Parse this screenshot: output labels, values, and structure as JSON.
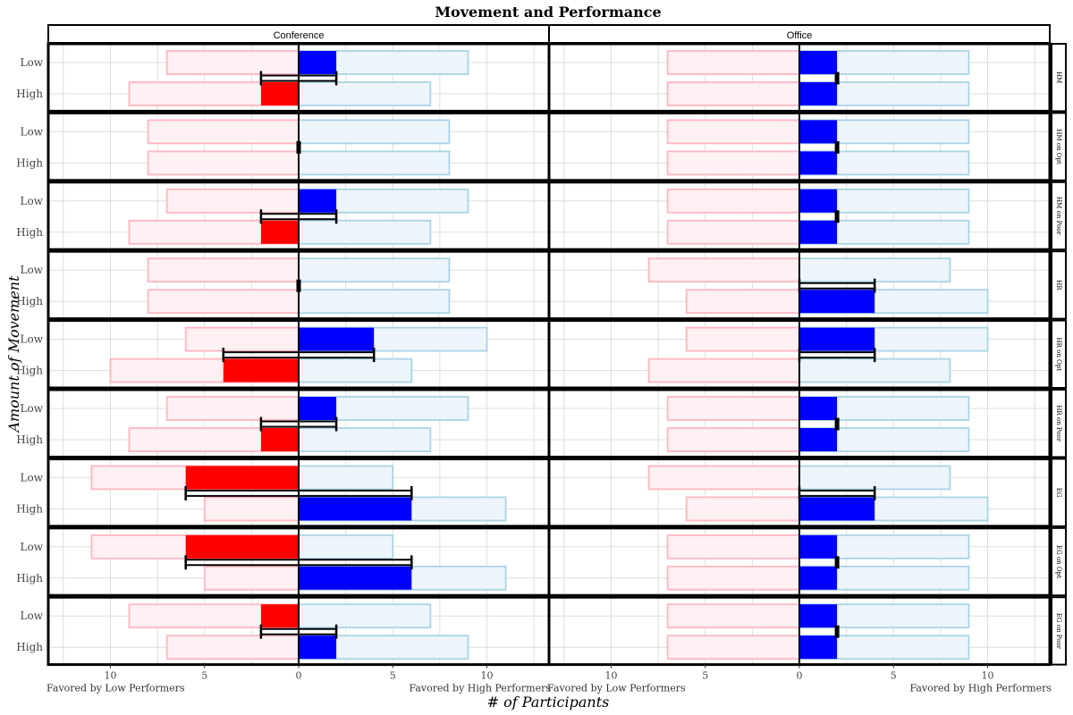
{
  "chart_data": {
    "type": "bar",
    "title": "Movement and Performance",
    "xlabel": "# of Participants",
    "ylabel": "Amount of Movement",
    "xlim": [
      -13.3,
      13.3
    ],
    "x_ticks": [
      -10,
      -5,
      0,
      5,
      10
    ],
    "x_tick_labels": [
      "10",
      "5",
      "0",
      "5",
      "10"
    ],
    "x_end_labels": {
      "left": "Favored by Low Performers",
      "right": "Favored by High Performers"
    },
    "columns": [
      "Conference",
      "Office"
    ],
    "categories": [
      "Low",
      "High"
    ],
    "rows": [
      "HM",
      "HM on Opt",
      "HM on Poor",
      "HR",
      "HR on Opt",
      "HR on Poor",
      "EG",
      "EG on Opt",
      "EG on Poor"
    ],
    "colors": {
      "low_fill": "#ff0000",
      "high_fill": "#0000ff",
      "low_bg_fill": "#fff0f3",
      "low_bg_stroke": "#ffb6c1",
      "high_bg_fill": "#eef5fa",
      "high_bg_stroke": "#a8d4e6",
      "grid": "#dddddd",
      "frame": "#000000"
    },
    "panels": [
      {
        "row": "HM",
        "column": "Conference",
        "low": {
          "left": 7,
          "right": 9,
          "net": 2
        },
        "high": {
          "left": 9,
          "right": 7,
          "net": -2
        },
        "error_bar": [
          -2,
          2
        ]
      },
      {
        "row": "HM",
        "column": "Office",
        "low": {
          "left": 7,
          "right": 9,
          "net": 2
        },
        "high": {
          "left": 7,
          "right": 9,
          "net": 2
        },
        "error_bar": [
          2,
          2
        ]
      },
      {
        "row": "HM on Opt",
        "column": "Conference",
        "low": {
          "left": 8,
          "right": 8,
          "net": 0
        },
        "high": {
          "left": 8,
          "right": 8,
          "net": 0
        },
        "error_bar": [
          0,
          0
        ]
      },
      {
        "row": "HM on Opt",
        "column": "Office",
        "low": {
          "left": 7,
          "right": 9,
          "net": 2
        },
        "high": {
          "left": 7,
          "right": 9,
          "net": 2
        },
        "error_bar": [
          2,
          2
        ]
      },
      {
        "row": "HM on Poor",
        "column": "Conference",
        "low": {
          "left": 7,
          "right": 9,
          "net": 2
        },
        "high": {
          "left": 9,
          "right": 7,
          "net": -2
        },
        "error_bar": [
          -2,
          2
        ]
      },
      {
        "row": "HM on Poor",
        "column": "Office",
        "low": {
          "left": 7,
          "right": 9,
          "net": 2
        },
        "high": {
          "left": 7,
          "right": 9,
          "net": 2
        },
        "error_bar": [
          2,
          2
        ]
      },
      {
        "row": "HR",
        "column": "Conference",
        "low": {
          "left": 8,
          "right": 8,
          "net": 0
        },
        "high": {
          "left": 8,
          "right": 8,
          "net": 0
        },
        "error_bar": [
          0,
          0
        ]
      },
      {
        "row": "HR",
        "column": "Office",
        "low": {
          "left": 8,
          "right": 8,
          "net": 0
        },
        "high": {
          "left": 6,
          "right": 10,
          "net": 4
        },
        "error_bar": [
          0,
          4
        ]
      },
      {
        "row": "HR on Opt",
        "column": "Conference",
        "low": {
          "left": 6,
          "right": 10,
          "net": 4
        },
        "high": {
          "left": 10,
          "right": 6,
          "net": -4
        },
        "error_bar": [
          -4,
          4
        ]
      },
      {
        "row": "HR on Opt",
        "column": "Office",
        "low": {
          "left": 6,
          "right": 10,
          "net": 4
        },
        "high": {
          "left": 8,
          "right": 8,
          "net": 0
        },
        "error_bar": [
          0,
          4
        ]
      },
      {
        "row": "HR on Poor",
        "column": "Conference",
        "low": {
          "left": 7,
          "right": 9,
          "net": 2
        },
        "high": {
          "left": 9,
          "right": 7,
          "net": -2
        },
        "error_bar": [
          -2,
          2
        ]
      },
      {
        "row": "HR on Poor",
        "column": "Office",
        "low": {
          "left": 7,
          "right": 9,
          "net": 2
        },
        "high": {
          "left": 7,
          "right": 9,
          "net": 2
        },
        "error_bar": [
          2,
          2
        ]
      },
      {
        "row": "EG",
        "column": "Conference",
        "low": {
          "left": 11,
          "right": 5,
          "net": -6
        },
        "high": {
          "left": 5,
          "right": 11,
          "net": 6
        },
        "error_bar": [
          -6,
          6
        ]
      },
      {
        "row": "EG",
        "column": "Office",
        "low": {
          "left": 8,
          "right": 8,
          "net": 0
        },
        "high": {
          "left": 6,
          "right": 10,
          "net": 4
        },
        "error_bar": [
          0,
          4
        ]
      },
      {
        "row": "EG on Opt",
        "column": "Conference",
        "low": {
          "left": 11,
          "right": 5,
          "net": -6
        },
        "high": {
          "left": 5,
          "right": 11,
          "net": 6
        },
        "error_bar": [
          -6,
          6
        ]
      },
      {
        "row": "EG on Opt",
        "column": "Office",
        "low": {
          "left": 7,
          "right": 9,
          "net": 2
        },
        "high": {
          "left": 7,
          "right": 9,
          "net": 2
        },
        "error_bar": [
          2,
          2
        ]
      },
      {
        "row": "EG on Poor",
        "column": "Conference",
        "low": {
          "left": 9,
          "right": 7,
          "net": -2
        },
        "high": {
          "left": 7,
          "right": 9,
          "net": 2
        },
        "error_bar": [
          -2,
          2
        ]
      },
      {
        "row": "EG on Poor",
        "column": "Office",
        "low": {
          "left": 7,
          "right": 9,
          "net": 2
        },
        "high": {
          "left": 7,
          "right": 9,
          "net": 2
        },
        "error_bar": [
          2,
          2
        ]
      }
    ]
  }
}
